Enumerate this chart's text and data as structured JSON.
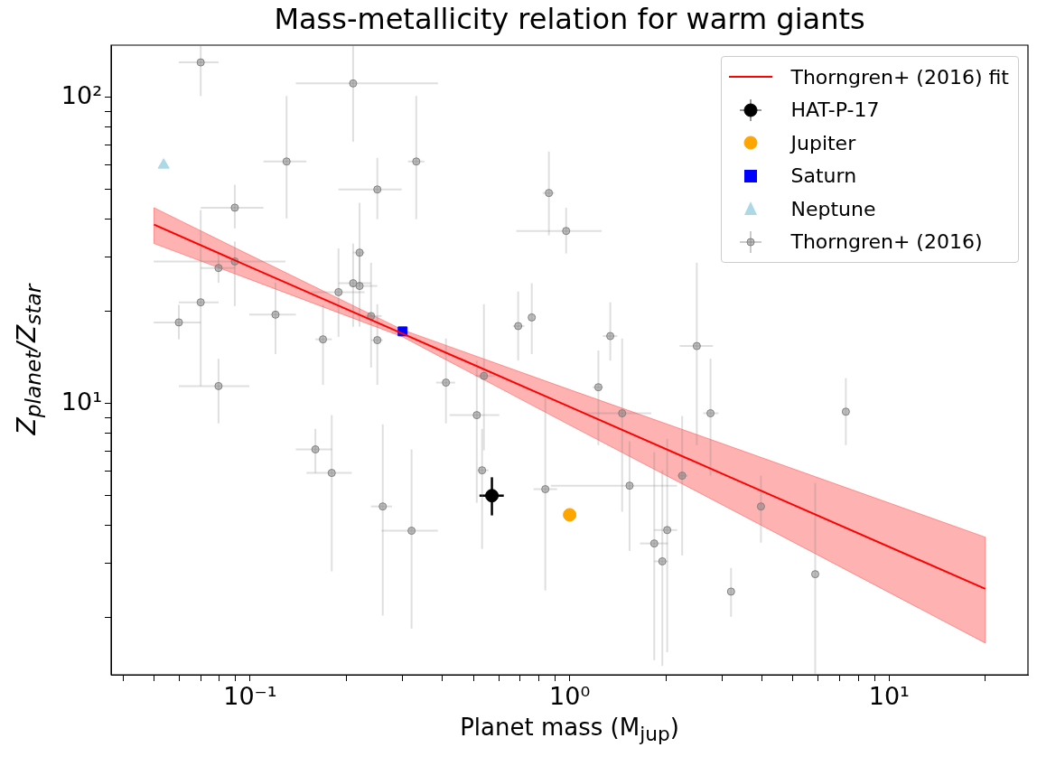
{
  "chart_data": {
    "type": "scatter",
    "title": "Mass-metallicity relation for warm giants",
    "xlabel": "Planet mass (M$_{jup}$)",
    "ylabel": "Z$_{planet}$/Z$_{star}$",
    "log": "xy",
    "legend": "top right",
    "xlim": [
      0.0367,
      27.2
    ],
    "ylim": [
      1.3,
      148
    ],
    "xticks": [
      {
        "value": 0.04,
        "label": null
      },
      {
        "value": 0.05,
        "label": null
      },
      {
        "value": 0.06,
        "label": null
      },
      {
        "value": 0.07,
        "label": null
      },
      {
        "value": 0.08,
        "label": null
      },
      {
        "value": 0.09,
        "label": null
      },
      {
        "value": 0.1,
        "label": "10⁻¹"
      },
      {
        "value": 0.2,
        "label": null
      },
      {
        "value": 0.3,
        "label": null
      },
      {
        "value": 0.4,
        "label": null
      },
      {
        "value": 0.5,
        "label": null
      },
      {
        "value": 0.6,
        "label": null
      },
      {
        "value": 0.7,
        "label": null
      },
      {
        "value": 0.8,
        "label": null
      },
      {
        "value": 0.9,
        "label": null
      },
      {
        "value": 1,
        "label": "10⁰"
      },
      {
        "value": 2,
        "label": null
      },
      {
        "value": 3,
        "label": null
      },
      {
        "value": 4,
        "label": null
      },
      {
        "value": 5,
        "label": null
      },
      {
        "value": 6,
        "label": null
      },
      {
        "value": 7,
        "label": null
      },
      {
        "value": 8,
        "label": null
      },
      {
        "value": 9,
        "label": null
      },
      {
        "value": 10,
        "label": "10¹"
      },
      {
        "value": 20,
        "label": null
      }
    ],
    "yticks": [
      {
        "value": 2,
        "label": null
      },
      {
        "value": 3,
        "label": null
      },
      {
        "value": 4,
        "label": null
      },
      {
        "value": 5,
        "label": null
      },
      {
        "value": 6,
        "label": null
      },
      {
        "value": 7,
        "label": null
      },
      {
        "value": 8,
        "label": null
      },
      {
        "value": 9,
        "label": null
      },
      {
        "value": 10,
        "label": "10¹"
      },
      {
        "value": 20,
        "label": null
      },
      {
        "value": 30,
        "label": null
      },
      {
        "value": 40,
        "label": null
      },
      {
        "value": 50,
        "label": null
      },
      {
        "value": 60,
        "label": null
      },
      {
        "value": 70,
        "label": null
      },
      {
        "value": 80,
        "label": null
      },
      {
        "value": 90,
        "label": null
      },
      {
        "value": 100,
        "label": "10²"
      }
    ],
    "series": [
      {
        "name": "Thorngren+ (2016) fit",
        "type": "line",
        "color": "#ff0000",
        "marker": "none",
        "x": [
          0.05,
          0.1,
          0.3,
          1,
          3,
          20
        ],
        "values": [
          38.4,
          27.9,
          16.9,
          9.75,
          5.9,
          2.48
        ],
        "lower": [
          33.3,
          25.4,
          16.5,
          8.5,
          4.67,
          1.65
        ],
        "upper": [
          43.6,
          30.5,
          17.4,
          11.1,
          7.4,
          3.66
        ]
      },
      {
        "name": "HAT-P-17",
        "type": "scatter",
        "color": "#000000",
        "marker": "circle",
        "x": [
          0.571
        ],
        "values": [
          5.0
        ],
        "errors": [
          [
            4.31,
            5.74
          ]
        ],
        "xerrors": [
          [
            0.522,
            0.622
          ]
        ]
      },
      {
        "name": "Jupiter",
        "type": "scatter",
        "color": "#ffa500",
        "marker": "circle",
        "x": [
          1.0
        ],
        "values": [
          4.33
        ]
      },
      {
        "name": "Saturn",
        "type": "scatter",
        "color": "#0000ff",
        "marker": "square",
        "x": [
          0.3
        ],
        "values": [
          17.2
        ]
      },
      {
        "name": "Neptune",
        "type": "scatter",
        "color": "#add8e6",
        "marker": "triangle",
        "x": [
          0.0536
        ],
        "values": [
          60.1
        ]
      },
      {
        "name": "Thorngren+ (2016)",
        "type": "scatter",
        "color": "#808080",
        "marker": "circle",
        "x": [
          0.07,
          0.21,
          0.13,
          0.331,
          0.25,
          0.0895,
          0.0895,
          0.0796,
          0.07,
          0.0598,
          0.0796,
          0.12,
          0.169,
          0.189,
          0.21,
          0.22,
          0.22,
          0.239,
          0.25,
          0.41,
          0.539,
          0.16,
          0.18,
          0.26,
          0.32,
          0.512,
          0.532,
          0.839,
          1.23,
          1.46,
          1.54,
          1.84,
          1.95,
          2.02,
          2.25,
          2.76,
          3.2,
          3.97,
          5.87,
          7.32,
          0.861,
          0.975,
          0.69,
          0.761,
          1.34,
          2.5
        ],
        "values": [
          130,
          111,
          61.7,
          61.7,
          50.0,
          43.6,
          29.1,
          27.7,
          21.4,
          18.4,
          11.4,
          19.5,
          16.2,
          23.1,
          24.7,
          24.2,
          31.1,
          19.3,
          16.1,
          11.7,
          12.3,
          7.08,
          5.93,
          4.61,
          3.84,
          9.16,
          6.05,
          5.25,
          11.3,
          9.29,
          5.39,
          3.49,
          3.05,
          3.86,
          5.81,
          9.29,
          2.43,
          4.61,
          2.77,
          9.4,
          48.7,
          36.6,
          17.9,
          19.1,
          16.6,
          15.4
        ],
        "errors": [
          [
            101,
            147
          ],
          [
            71.6,
            147
          ],
          [
            40.2,
            101
          ],
          [
            40.0,
            101
          ],
          [
            40.0,
            63.4
          ],
          [
            37.3,
            51.8
          ],
          [
            20.8,
            33.8
          ],
          [
            24.8,
            31.1
          ],
          [
            11.4,
            42.8
          ],
          [
            16.2,
            21.0
          ],
          [
            8.61,
            14.0
          ],
          [
            14.5,
            24.8
          ],
          [
            11.5,
            21.0
          ],
          [
            16.5,
            32.1
          ],
          [
            17.8,
            33.3
          ],
          [
            17.8,
            30.9
          ],
          [
            24.2,
            45.2
          ],
          [
            13.1,
            28.8
          ],
          [
            11.5,
            21.1
          ],
          [
            8.61,
            16.3
          ],
          [
            7.03,
            21.1
          ],
          [
            5.93,
            8.26
          ],
          [
            2.83,
            9.16
          ],
          [
            2.03,
            8.55
          ],
          [
            1.84,
            7.08
          ],
          [
            4.74,
            13.8
          ],
          [
            3.35,
            8.26
          ],
          [
            2.45,
            10.4
          ],
          [
            7.31,
            14.9
          ],
          [
            4.43,
            16.3
          ],
          [
            3.3,
            7.52
          ],
          [
            1.45,
            6.93
          ],
          [
            1.39,
            6.05
          ],
          [
            1.54,
            7.67
          ],
          [
            3.19,
            9.1
          ],
          [
            5.81,
            14.0
          ],
          [
            2.01,
            2.9
          ],
          [
            3.51,
            5.81
          ],
          [
            1.31,
            5.5
          ],
          [
            7.31,
            12.1
          ],
          [
            35.4,
            66.5
          ],
          [
            30.9,
            43.6
          ],
          [
            13.8,
            23.2
          ],
          [
            14.5,
            24.7
          ],
          [
            13.8,
            21.4
          ],
          [
            7.31,
            28.8
          ]
        ],
        "xerrors": [
          [
            0.0598,
            0.0796
          ],
          [
            0.139,
            0.387
          ],
          [
            0.11,
            0.15
          ],
          [
            0.312,
            0.351
          ],
          [
            0.189,
            0.298
          ],
          [
            0.07,
            0.11
          ],
          [
            0.0499,
            0.129
          ],
          [
            0.07,
            0.0895
          ],
          [
            0.0598,
            0.0796
          ],
          [
            0.0499,
            0.07
          ],
          [
            0.0598,
            0.0994
          ],
          [
            0.0994,
            0.139
          ],
          [
            0.16,
            0.18
          ],
          [
            0.155,
            0.228
          ],
          [
            0.189,
            0.239
          ],
          [
            0.208,
            0.25
          ],
          [
            0.21,
            0.228
          ],
          [
            0.224,
            0.258
          ],
          [
            0.239,
            0.26
          ],
          [
            0.382,
            0.438
          ],
          [
            0.505,
            0.583
          ],
          [
            0.139,
            0.18
          ],
          [
            0.15,
            0.208
          ],
          [
            0.239,
            0.278
          ],
          [
            0.258,
            0.387
          ],
          [
            0.421,
            0.602
          ],
          [
            0.515,
            0.557
          ],
          [
            0.771,
            0.913
          ],
          [
            1.18,
            1.27
          ],
          [
            1.12,
            1.8
          ],
          [
            0.873,
            2.17
          ],
          [
            1.66,
            2.03
          ],
          [
            1.84,
            2.03
          ],
          [
            1.84,
            2.17
          ],
          [
            2.17,
            2.34
          ],
          [
            2.62,
            2.92
          ],
          null,
          null,
          null,
          null,
          [
            0.823,
            0.895
          ],
          [
            0.681,
            1.26
          ],
          [
            0.664,
            0.722
          ],
          null,
          [
            1.27,
            1.41
          ],
          [
            2.21,
            2.81
          ]
        ]
      }
    ]
  }
}
